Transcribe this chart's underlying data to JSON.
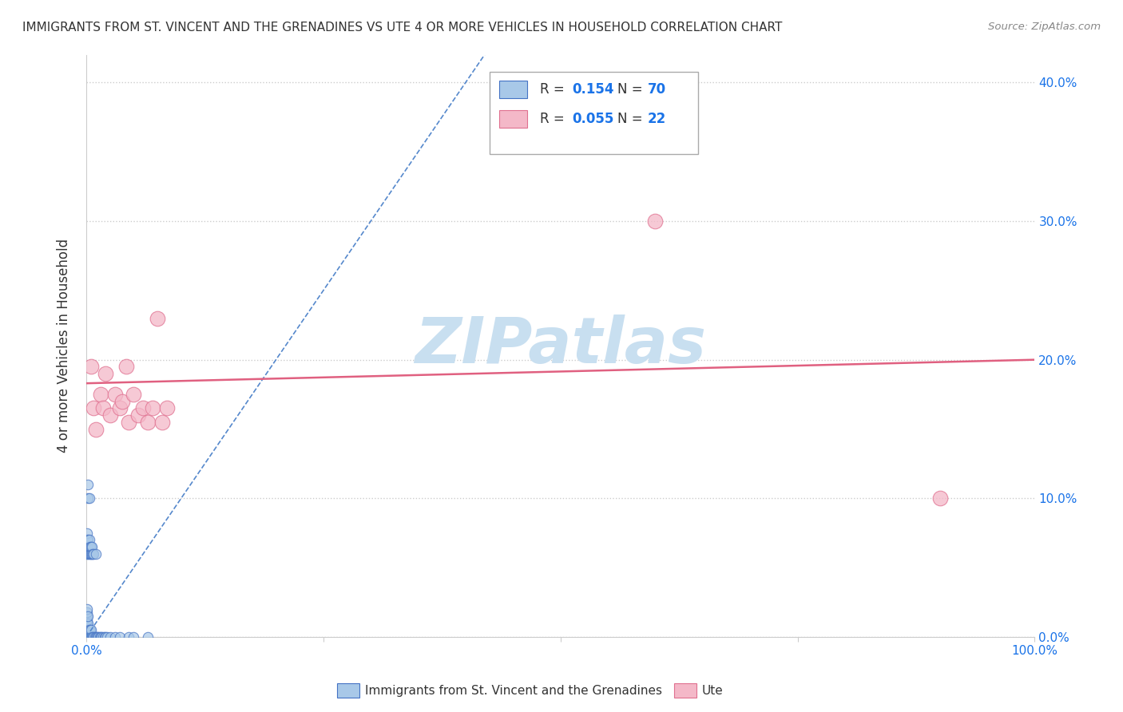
{
  "title": "IMMIGRANTS FROM ST. VINCENT AND THE GRENADINES VS UTE 4 OR MORE VEHICLES IN HOUSEHOLD CORRELATION CHART",
  "source": "Source: ZipAtlas.com",
  "ylabel": "4 or more Vehicles in Household",
  "legend_label1": "Immigrants from St. Vincent and the Grenadines",
  "legend_label2": "Ute",
  "R1": "0.154",
  "N1": "70",
  "R2": "0.055",
  "N2": "22",
  "xmin": 0.0,
  "xmax": 1.0,
  "ymin": 0.0,
  "ymax": 0.42,
  "yticks": [
    0.0,
    0.1,
    0.2,
    0.3,
    0.4
  ],
  "ytick_labels": [
    "0.0%",
    "10.0%",
    "20.0%",
    "30.0%",
    "40.0%"
  ],
  "xticks": [
    0.0,
    0.25,
    0.5,
    0.75,
    1.0
  ],
  "xtick_labels": [
    "0.0%",
    "",
    "",
    "",
    "100.0%"
  ],
  "blue_scatter_x": [
    0.001,
    0.001,
    0.001,
    0.001,
    0.001,
    0.001,
    0.001,
    0.001,
    0.001,
    0.001,
    0.001,
    0.001,
    0.001,
    0.001,
    0.001,
    0.001,
    0.001,
    0.001,
    0.002,
    0.002,
    0.002,
    0.002,
    0.002,
    0.002,
    0.002,
    0.002,
    0.002,
    0.002,
    0.002,
    0.003,
    0.003,
    0.003,
    0.003,
    0.003,
    0.003,
    0.003,
    0.004,
    0.004,
    0.004,
    0.004,
    0.005,
    0.005,
    0.005,
    0.005,
    0.006,
    0.006,
    0.006,
    0.007,
    0.007,
    0.008,
    0.008,
    0.009,
    0.01,
    0.01,
    0.011,
    0.012,
    0.013,
    0.014,
    0.015,
    0.016,
    0.018,
    0.019,
    0.02,
    0.022,
    0.025,
    0.03,
    0.035,
    0.045,
    0.05,
    0.065
  ],
  "blue_scatter_y": [
    0.0,
    0.001,
    0.002,
    0.003,
    0.004,
    0.005,
    0.006,
    0.007,
    0.008,
    0.01,
    0.012,
    0.015,
    0.018,
    0.02,
    0.06,
    0.065,
    0.07,
    0.075,
    0.0,
    0.001,
    0.002,
    0.005,
    0.01,
    0.015,
    0.06,
    0.065,
    0.07,
    0.1,
    0.11,
    0.0,
    0.002,
    0.005,
    0.06,
    0.065,
    0.07,
    0.1,
    0.0,
    0.005,
    0.06,
    0.065,
    0.0,
    0.005,
    0.06,
    0.065,
    0.0,
    0.06,
    0.065,
    0.0,
    0.06,
    0.0,
    0.06,
    0.0,
    0.0,
    0.06,
    0.0,
    0.0,
    0.0,
    0.0,
    0.0,
    0.0,
    0.0,
    0.0,
    0.0,
    0.0,
    0.0,
    0.0,
    0.0,
    0.0,
    0.0,
    0.0
  ],
  "pink_scatter_x": [
    0.005,
    0.008,
    0.01,
    0.015,
    0.018,
    0.02,
    0.025,
    0.03,
    0.035,
    0.038,
    0.042,
    0.045,
    0.05,
    0.055,
    0.06,
    0.065,
    0.07,
    0.075,
    0.08,
    0.085,
    0.6,
    0.9
  ],
  "pink_scatter_y": [
    0.195,
    0.165,
    0.15,
    0.175,
    0.165,
    0.19,
    0.16,
    0.175,
    0.165,
    0.17,
    0.195,
    0.155,
    0.175,
    0.16,
    0.165,
    0.155,
    0.165,
    0.23,
    0.155,
    0.165,
    0.3,
    0.1
  ],
  "blue_line_x": [
    0.0,
    0.42
  ],
  "blue_line_y": [
    0.0,
    0.42
  ],
  "pink_line_x": [
    0.0,
    1.0
  ],
  "pink_line_y": [
    0.183,
    0.2
  ],
  "blue_color": "#a8c8e8",
  "pink_color": "#f4b8c8",
  "blue_line_color": "#5588cc",
  "pink_line_color": "#e06080",
  "blue_dot_edge": "#4472c4",
  "pink_dot_edge": "#e07090",
  "watermark_text": "ZIPatlas",
  "watermark_color": "#c8dff0",
  "background_color": "#ffffff",
  "grid_color": "#cccccc"
}
